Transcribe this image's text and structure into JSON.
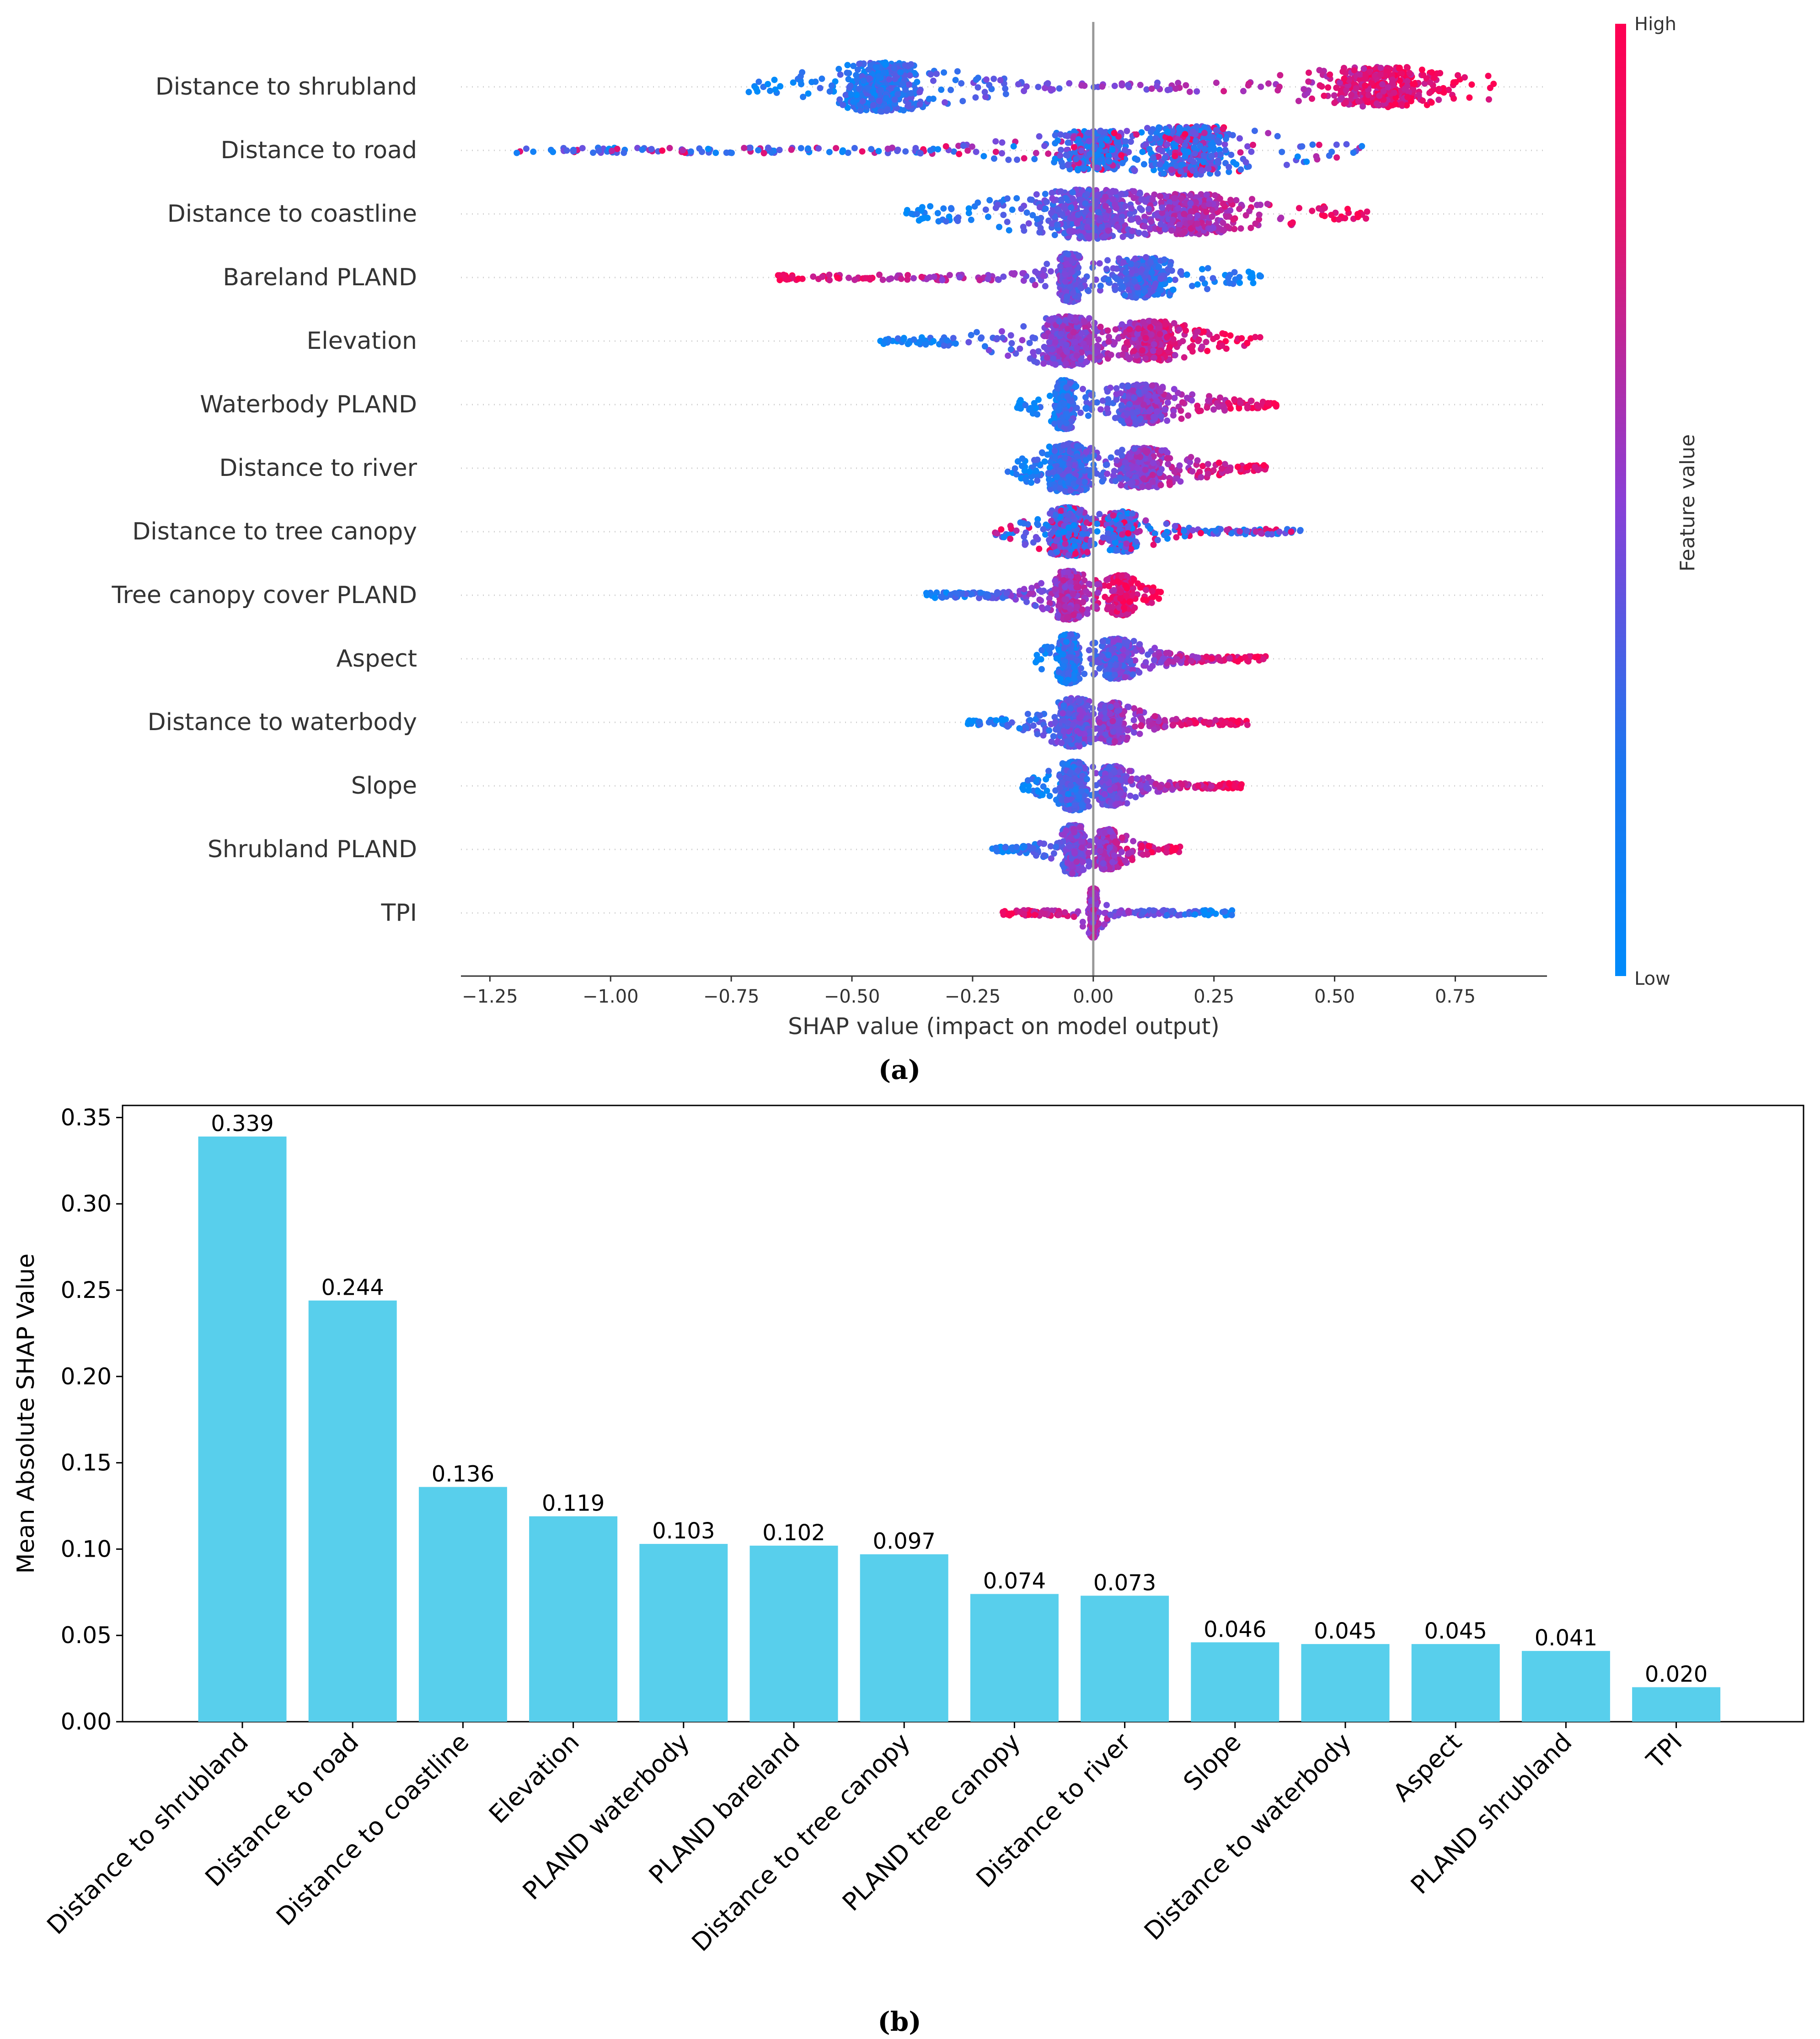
{
  "chart_data": [
    {
      "type": "scatter",
      "subtype": "shap-beeswarm",
      "panel_label": "(a)",
      "title": "",
      "xlabel": "SHAP value (impact on model output)",
      "ylabel": "",
      "xlim": [
        -1.31,
        0.94
      ],
      "xticks": [
        -1.25,
        -1.0,
        -0.75,
        -0.5,
        -0.25,
        0.0,
        0.25,
        0.5,
        0.75
      ],
      "xtick_labels": [
        "−1.25",
        "−1.00",
        "−0.75",
        "−0.50",
        "−0.25",
        "0.00",
        "0.25",
        "0.50",
        "0.75"
      ],
      "grid": false,
      "colorbar": {
        "label": "Feature value",
        "high_label": "High",
        "low_label": "Low",
        "high_color": "#ff0052",
        "mid_color": "#8a3fd6",
        "low_color": "#008bfb"
      },
      "features": [
        {
          "name": "Distance to shrubland",
          "min": -0.72,
          "max": 0.83,
          "cluster": -0.44,
          "cluster_width": 0.13,
          "main": 0.6,
          "main_width": 0.18,
          "dir": 1
        },
        {
          "name": "Distance to road",
          "min": -1.2,
          "max": 0.56,
          "cluster": 0.2,
          "cluster_width": 0.16,
          "main": 0.0,
          "main_width": 0.12,
          "dir": 0
        },
        {
          "name": "Distance to coastline",
          "min": -0.39,
          "max": 0.58,
          "cluster": 0.0,
          "cluster_width": 0.17,
          "main": 0.2,
          "main_width": 0.15,
          "dir": 1
        },
        {
          "name": "Bareland PLAND",
          "min": -0.66,
          "max": 0.35,
          "cluster": -0.05,
          "cluster_width": 0.03,
          "main": 0.1,
          "main_width": 0.1,
          "dir": -1
        },
        {
          "name": "Elevation",
          "min": -0.46,
          "max": 0.35,
          "cluster": -0.05,
          "cluster_width": 0.1,
          "main": 0.12,
          "main_width": 0.08,
          "dir": 1
        },
        {
          "name": "Waterbody PLAND",
          "min": -0.16,
          "max": 0.38,
          "cluster": -0.06,
          "cluster_width": 0.03,
          "main": 0.1,
          "main_width": 0.08,
          "dir": 1
        },
        {
          "name": "Distance to river",
          "min": -0.18,
          "max": 0.36,
          "cluster": -0.05,
          "cluster_width": 0.06,
          "main": 0.1,
          "main_width": 0.08,
          "dir": 1
        },
        {
          "name": "Distance to tree canopy",
          "min": -0.21,
          "max": 0.43,
          "cluster": -0.05,
          "cluster_width": 0.06,
          "main": 0.06,
          "main_width": 0.05,
          "dir": 0
        },
        {
          "name": "Tree canopy cover PLAND",
          "min": -0.35,
          "max": 0.14,
          "cluster": -0.05,
          "cluster_width": 0.04,
          "main": 0.06,
          "main_width": 0.03,
          "dir": 1
        },
        {
          "name": "Aspect",
          "min": -0.12,
          "max": 0.36,
          "cluster": -0.05,
          "cluster_width": 0.03,
          "main": 0.05,
          "main_width": 0.05,
          "dir": 1
        },
        {
          "name": "Distance to waterbody",
          "min": -0.26,
          "max": 0.32,
          "cluster": -0.04,
          "cluster_width": 0.05,
          "main": 0.04,
          "main_width": 0.04,
          "dir": 1
        },
        {
          "name": "Slope",
          "min": -0.15,
          "max": 0.31,
          "cluster": -0.04,
          "cluster_width": 0.04,
          "main": 0.04,
          "main_width": 0.04,
          "dir": 1
        },
        {
          "name": "Shrubland PLAND",
          "min": -0.21,
          "max": 0.18,
          "cluster": -0.04,
          "cluster_width": 0.03,
          "main": 0.03,
          "main_width": 0.03,
          "dir": 1
        },
        {
          "name": "TPI",
          "min": -0.19,
          "max": 0.29,
          "cluster": 0.0,
          "cluster_width": 0.01,
          "main": 0.0,
          "main_width": 0.01,
          "dir": -1
        }
      ]
    },
    {
      "type": "bar",
      "panel_label": "(b)",
      "title": "",
      "xlabel": "",
      "ylabel": "Mean Absolute SHAP Value",
      "ylim": [
        0,
        0.357
      ],
      "yticks": [
        0.0,
        0.05,
        0.1,
        0.15,
        0.2,
        0.25,
        0.3,
        0.35
      ],
      "ytick_labels": [
        "0.00",
        "0.05",
        "0.10",
        "0.15",
        "0.20",
        "0.25",
        "0.30",
        "0.35"
      ],
      "bar_color": "#58cfec",
      "grid": false,
      "categories": [
        "Distance to shrubland",
        "Distance to road",
        "Distance to coastline",
        "Elevation",
        "PLAND waterbody",
        "PLAND bareland",
        "Distance to tree canopy",
        "PLAND tree canopy",
        "Distance to river",
        "Slope",
        "Distance to waterbody",
        "Aspect",
        "PLAND shrubland",
        "TPI"
      ],
      "values": [
        0.339,
        0.244,
        0.136,
        0.119,
        0.103,
        0.102,
        0.097,
        0.074,
        0.073,
        0.046,
        0.045,
        0.045,
        0.041,
        0.02
      ],
      "value_labels": [
        "0.339",
        "0.244",
        "0.136",
        "0.119",
        "0.103",
        "0.102",
        "0.097",
        "0.074",
        "0.073",
        "0.046",
        "0.045",
        "0.045",
        "0.041",
        "0.020"
      ]
    }
  ]
}
